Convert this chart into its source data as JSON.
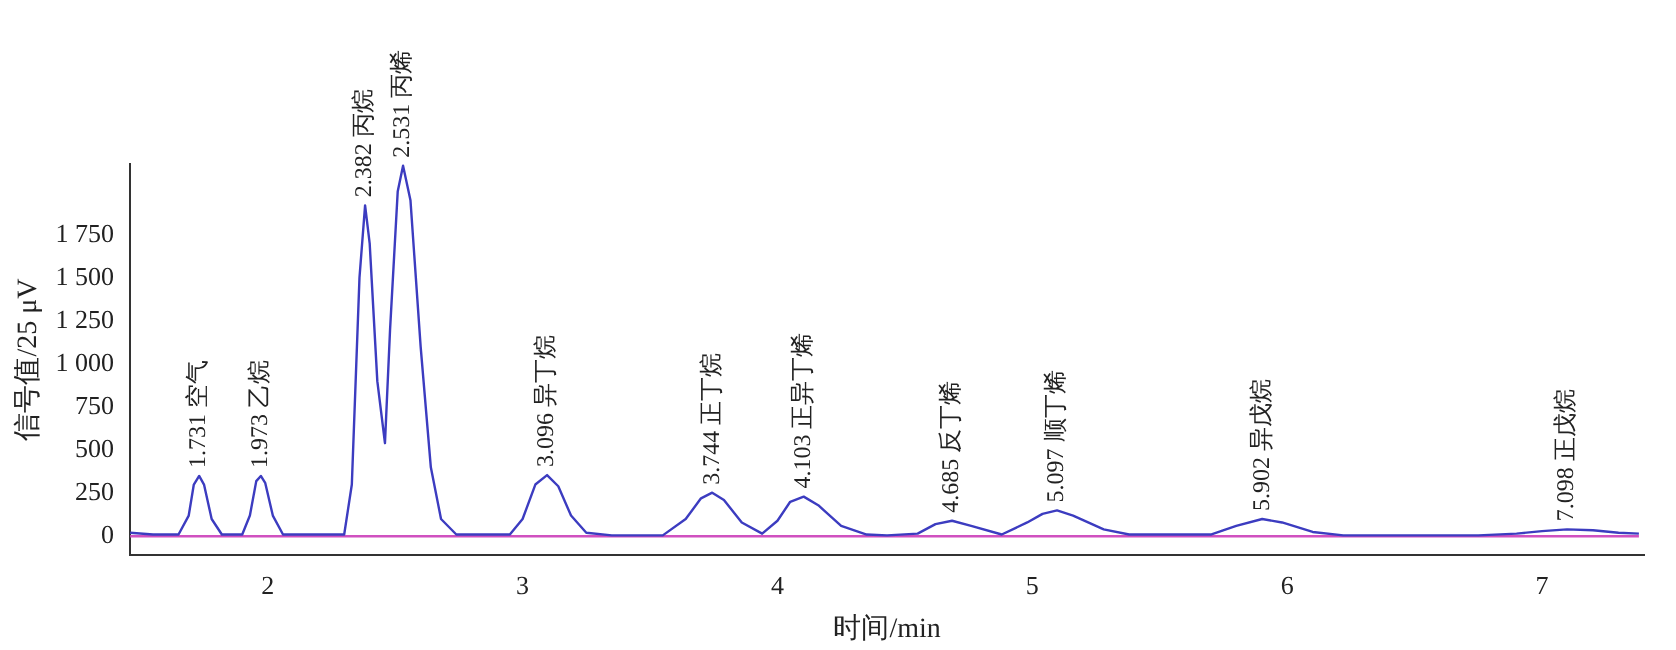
{
  "chart_data": {
    "type": "line",
    "xlabel": "时间/min",
    "ylabel": "信号值/25 μV",
    "marker": "none",
    "xlim": [
      1.46,
      7.4
    ],
    "ylim": [
      -110,
      2160
    ],
    "xticks": [
      2,
      3,
      4,
      5,
      6,
      7
    ],
    "yticks": [
      0,
      250,
      500,
      750,
      {
        "value": 1000,
        "label": "1 000"
      },
      {
        "value": 1250,
        "label": "1 250"
      },
      {
        "value": 1500,
        "label": "1 500"
      },
      {
        "value": 1750,
        "label": "1 750"
      }
    ],
    "series": [
      {
        "color": "#3c3cc0",
        "x": [
          1.46,
          1.55,
          1.65,
          1.69,
          1.71,
          1.731,
          1.75,
          1.78,
          1.82,
          1.9,
          1.93,
          1.955,
          1.973,
          1.99,
          2.02,
          2.06,
          2.3,
          2.33,
          2.36,
          2.382,
          2.4,
          2.43,
          2.46,
          2.48,
          2.51,
          2.531,
          2.56,
          2.6,
          2.64,
          2.68,
          2.74,
          2.95,
          3.0,
          3.05,
          3.096,
          3.14,
          3.19,
          3.25,
          3.35,
          3.55,
          3.64,
          3.7,
          3.744,
          3.79,
          3.86,
          3.94,
          4.0,
          4.05,
          4.103,
          4.16,
          4.25,
          4.35,
          4.43,
          4.55,
          4.62,
          4.685,
          4.76,
          4.88,
          4.98,
          5.04,
          5.097,
          5.16,
          5.28,
          5.38,
          5.7,
          5.8,
          5.902,
          5.98,
          6.1,
          6.22,
          6.75,
          6.9,
          7.0,
          7.098,
          7.2,
          7.3,
          7.38
        ],
        "values": [
          20,
          10,
          10,
          120,
          300,
          350,
          300,
          100,
          10,
          10,
          120,
          320,
          350,
          310,
          120,
          10,
          10,
          300,
          1500,
          1920,
          1700,
          900,
          540,
          1200,
          2000,
          2150,
          1950,
          1100,
          400,
          100,
          10,
          10,
          100,
          300,
          355,
          290,
          120,
          20,
          5,
          5,
          100,
          220,
          253,
          210,
          80,
          15,
          90,
          200,
          230,
          180,
          60,
          10,
          5,
          15,
          70,
          90,
          60,
          10,
          80,
          130,
          150,
          120,
          40,
          10,
          10,
          60,
          100,
          80,
          25,
          5,
          5,
          15,
          30,
          40,
          35,
          20,
          15
        ]
      },
      {
        "color": "#d050c0",
        "x": [
          1.46,
          7.38
        ],
        "values": [
          0,
          0
        ]
      }
    ],
    "annotations": [
      {
        "text": "1.731 空气",
        "x": 1.731,
        "y": 350
      },
      {
        "text": "1.973 乙烷",
        "x": 1.973,
        "y": 350
      },
      {
        "text": "2.382 丙烷",
        "x": 2.382,
        "y": 1920
      },
      {
        "text": "2.531 丙烯",
        "x": 2.531,
        "y": 2150
      },
      {
        "text": "3.096 异丁烷",
        "x": 3.096,
        "y": 355
      },
      {
        "text": "3.744 正丁烷",
        "x": 3.744,
        "y": 253
      },
      {
        "text": "4.103 正异丁烯",
        "x": 4.103,
        "y": 230
      },
      {
        "text": "4.685 反丁烯",
        "x": 4.685,
        "y": 90
      },
      {
        "text": "5.097 顺丁烯",
        "x": 5.097,
        "y": 150
      },
      {
        "text": "5.902 异戊烷",
        "x": 5.902,
        "y": 100
      },
      {
        "text": "7.098 正戊烷",
        "x": 7.098,
        "y": 40
      }
    ]
  }
}
